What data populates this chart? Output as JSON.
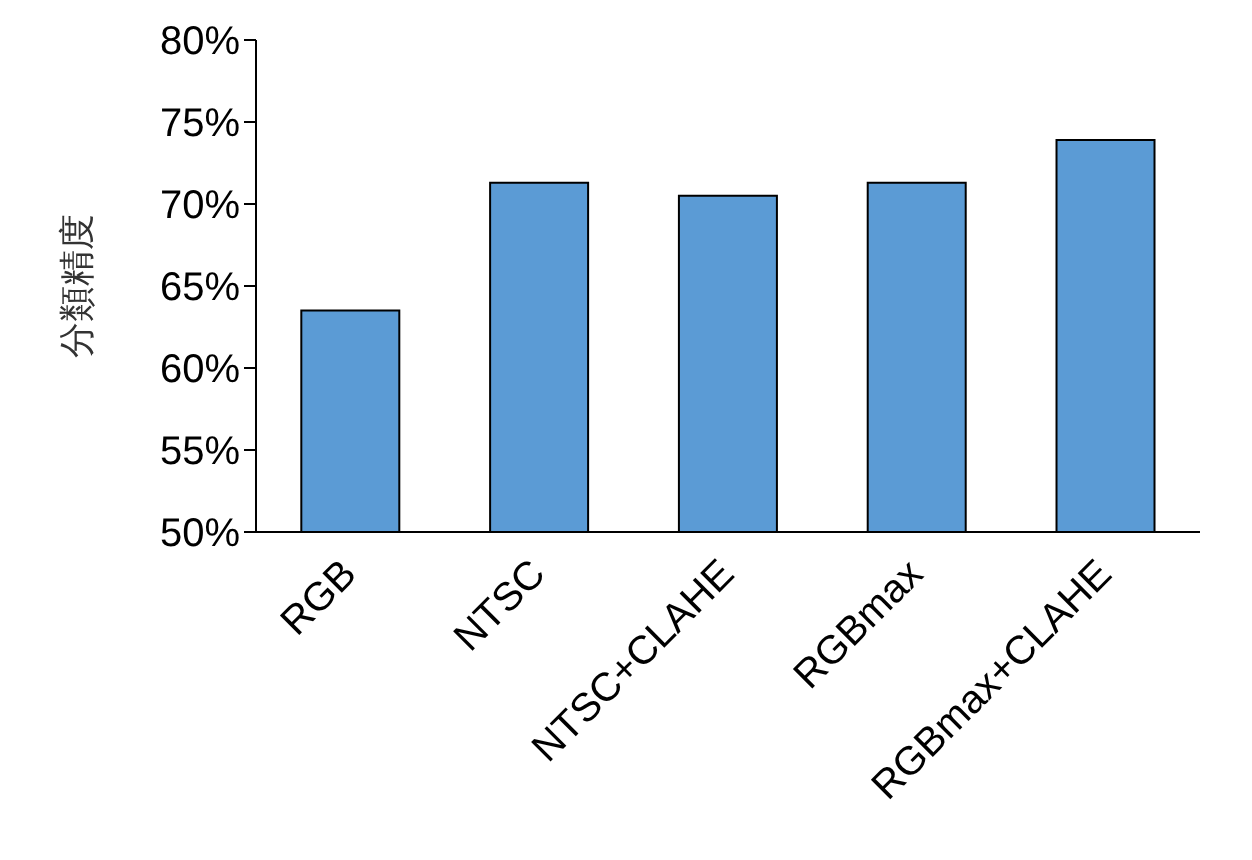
{
  "chart_data": {
    "type": "bar",
    "ylabel": "分類精度",
    "categories": [
      "RGB",
      "NTSC",
      "NTSC+CLAHE",
      "RGBmax",
      "RGBmax+CLAHE"
    ],
    "values": [
      63.5,
      71.3,
      70.5,
      71.3,
      73.9
    ],
    "color": "#5b9bd5",
    "ylim": [
      50,
      80
    ],
    "yticks": [
      {
        "value": 50,
        "label": "50%"
      },
      {
        "value": 55,
        "label": "55%"
      },
      {
        "value": 60,
        "label": "60%"
      },
      {
        "value": 65,
        "label": "65%"
      },
      {
        "value": 70,
        "label": "70%"
      },
      {
        "value": 75,
        "label": "75%"
      },
      {
        "value": 80,
        "label": "80%"
      }
    ],
    "grid": false,
    "legend": false
  }
}
